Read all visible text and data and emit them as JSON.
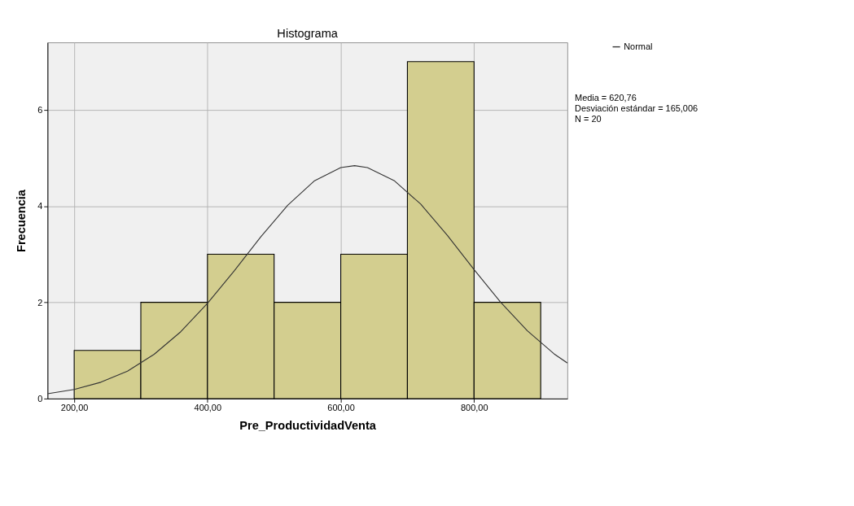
{
  "chart_data": {
    "type": "histogram",
    "title": "Histograma",
    "xlabel": "Pre_ProductividadVenta",
    "ylabel": "Frecuencia",
    "bins": [
      200,
      300,
      400,
      500,
      600,
      700,
      800,
      900
    ],
    "values": [
      1,
      2,
      3,
      2,
      3,
      7,
      2
    ],
    "color": "#d3ce8f",
    "series": [
      {
        "type": "line",
        "name": "Normal",
        "color": "#333333",
        "x": [
          160,
          200,
          240,
          280,
          320,
          360,
          400,
          440,
          480,
          520,
          560,
          600,
          620.76,
          640,
          680,
          720,
          760,
          800,
          840,
          880,
          920,
          940
        ],
        "values": [
          0.1,
          0.19,
          0.34,
          0.57,
          0.92,
          1.39,
          1.98,
          2.65,
          3.36,
          4.01,
          4.52,
          4.8,
          4.84,
          4.8,
          4.53,
          4.04,
          3.39,
          2.68,
          2.0,
          1.41,
          0.93,
          0.74
        ]
      }
    ],
    "xlim": [
      160,
      940
    ],
    "ylim": [
      0,
      7.4
    ],
    "xticks": [
      {
        "value": 200,
        "label": "200,00"
      },
      {
        "value": 400,
        "label": "400,00"
      },
      {
        "value": 600,
        "label": "600,00"
      },
      {
        "value": 800,
        "label": "800,00"
      }
    ],
    "yticks": [
      0,
      2,
      4,
      6
    ],
    "grid": true,
    "legend": "top right",
    "annotations": [
      "Media = 620,76",
      "Desviación estándar = 165,006",
      "N = 20"
    ]
  }
}
